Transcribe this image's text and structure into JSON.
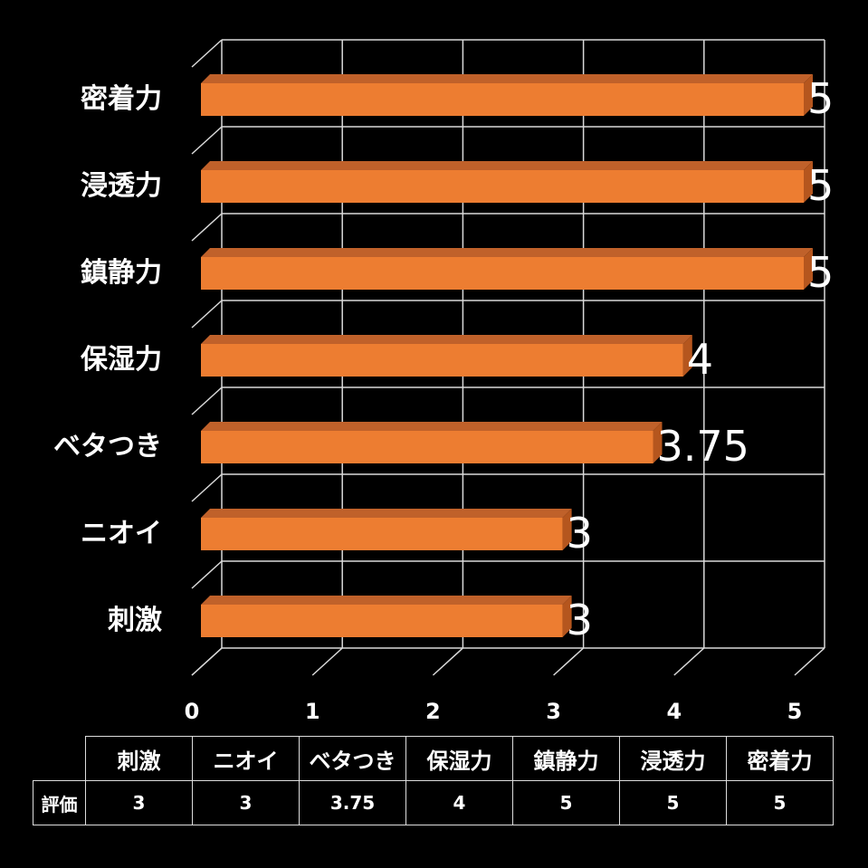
{
  "chart_data": {
    "type": "bar",
    "orientation": "horizontal",
    "style": "3d",
    "title": "",
    "xlabel": "",
    "ylabel": "",
    "categories": [
      "密着力",
      "浸透力",
      "鎮静力",
      "保湿力",
      "ベタつき",
      "ニオイ",
      "刺激"
    ],
    "values": [
      5,
      5,
      5,
      4,
      3.75,
      3,
      3
    ],
    "xlim": [
      0,
      5
    ],
    "x_ticks": [
      "0",
      "1",
      "2",
      "3",
      "4",
      "5"
    ],
    "grid": true,
    "legend": null,
    "data_labels": [
      "5",
      "5",
      "5",
      "4",
      "3.75",
      "3",
      "3"
    ],
    "colors": {
      "bar_front": "#ED7D31",
      "bar_top": "#C0612A",
      "bar_side": "#B5561E",
      "grid": "#D9D9D9",
      "background": "#000000",
      "text": "#FFFFFF"
    }
  },
  "table": {
    "row_header": "評価",
    "columns": [
      "刺激",
      "ニオイ",
      "ベタつき",
      "保湿力",
      "鎮静力",
      "浸透力",
      "密着力"
    ],
    "values": [
      "3",
      "3",
      "3.75",
      "4",
      "5",
      "5",
      "5"
    ]
  }
}
